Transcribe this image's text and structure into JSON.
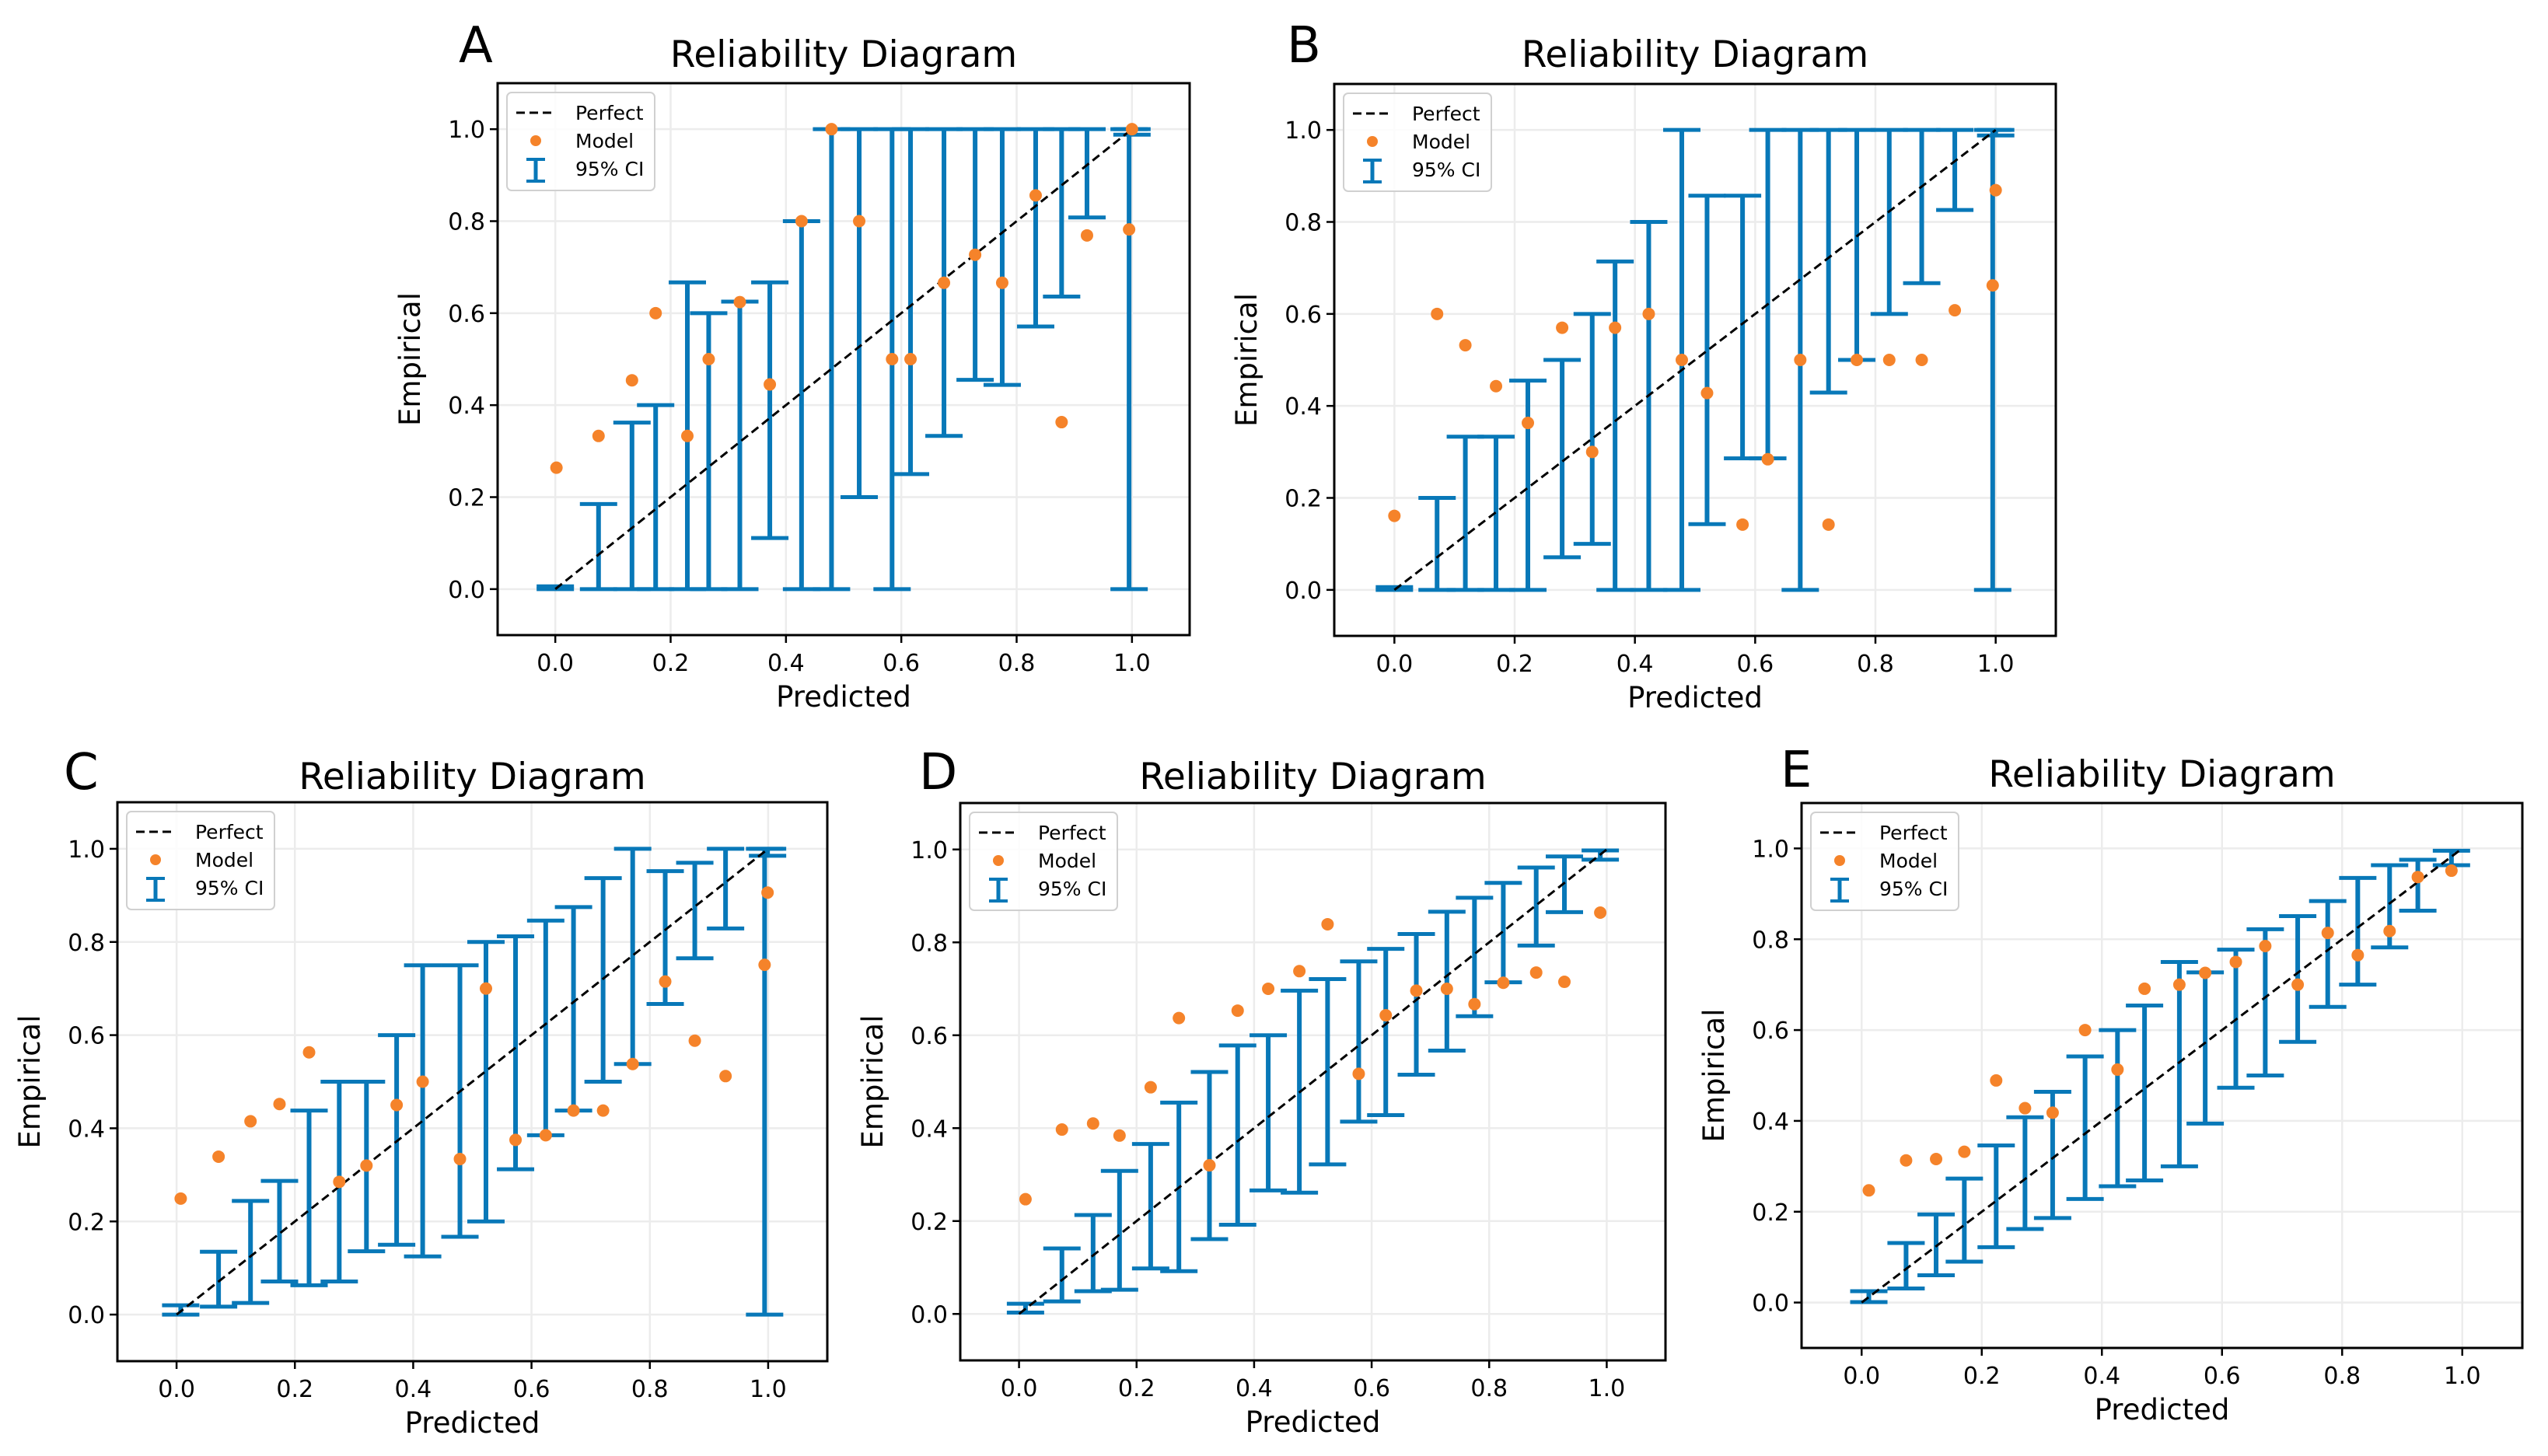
{
  "figure": {
    "panel_letters": [
      "A",
      "B",
      "C",
      "D",
      "E"
    ]
  },
  "colors": {
    "model": "#f5832a",
    "ci": "#0878b8",
    "perfect": "#000000",
    "grid": "#ececec",
    "legend_border": "#d0d0d0"
  },
  "legend": {
    "perfect_label": "Perfect",
    "model_label": "Model",
    "ci_label": "95% CI",
    "placement": "top-left"
  },
  "chart_data": [
    {
      "panel": "A",
      "type": "scatter",
      "title": "Reliability Diagram",
      "xlabel": "Predicted",
      "ylabel": "Empirical",
      "xlim": [
        -0.1,
        1.1
      ],
      "ylim": [
        -0.1,
        1.1
      ],
      "xticks": [
        "0.0",
        "0.2",
        "0.4",
        "0.6",
        "0.8",
        "1.0"
      ],
      "yticks": [
        "0.0",
        "0.2",
        "0.4",
        "0.6",
        "0.8",
        "1.0"
      ],
      "grid": true,
      "show_ylabel": true,
      "perfect_line": [
        [
          0,
          0
        ],
        [
          1,
          1
        ]
      ],
      "model": {
        "x": [
          0.002,
          0.075,
          0.133,
          0.174,
          0.229,
          0.266,
          0.32,
          0.372,
          0.427,
          0.479,
          0.527,
          0.584,
          0.616,
          0.674,
          0.728,
          0.775,
          0.833,
          0.878,
          0.922,
          0.995,
          1.0
        ],
        "y": [
          0.264,
          0.333,
          0.454,
          0.6,
          0.333,
          0.5,
          0.624,
          0.445,
          0.8,
          1.0,
          0.8,
          0.5,
          0.5,
          0.666,
          0.727,
          0.666,
          0.856,
          0.363,
          0.769,
          0.782,
          1.0
        ]
      },
      "ci": {
        "x": [
          0.0,
          0.075,
          0.133,
          0.174,
          0.229,
          0.266,
          0.32,
          0.372,
          0.427,
          0.479,
          0.527,
          0.584,
          0.616,
          0.674,
          0.728,
          0.775,
          0.833,
          0.878,
          0.922,
          0.995,
          1.0
        ],
        "low": [
          0.0,
          0.0,
          0.0,
          0.0,
          0.0,
          0.0,
          0.0,
          0.111,
          0.0,
          0.0,
          0.2,
          0.0,
          0.25,
          0.333,
          0.455,
          0.444,
          0.571,
          0.636,
          0.808,
          0.0,
          0.988
        ],
        "high": [
          0.006,
          0.185,
          0.362,
          0.4,
          0.667,
          0.6,
          0.625,
          0.667,
          0.8,
          1.0,
          1.0,
          1.0,
          1.0,
          1.0,
          1.0,
          1.0,
          1.0,
          1.0,
          1.0,
          1.0,
          1.0
        ]
      }
    },
    {
      "panel": "B",
      "type": "scatter",
      "title": "Reliability Diagram",
      "xlabel": "Predicted",
      "ylabel": "Empirical",
      "xlim": [
        -0.1,
        1.1
      ],
      "ylim": [
        -0.1,
        1.1
      ],
      "xticks": [
        "0.0",
        "0.2",
        "0.4",
        "0.6",
        "0.8",
        "1.0"
      ],
      "yticks": [
        "0.0",
        "0.2",
        "0.4",
        "0.6",
        "0.8",
        "1.0"
      ],
      "grid": true,
      "show_ylabel": true,
      "perfect_line": [
        [
          0,
          0
        ],
        [
          1,
          1
        ]
      ],
      "model": {
        "x": [
          0.0,
          0.071,
          0.118,
          0.169,
          0.222,
          0.279,
          0.329,
          0.367,
          0.423,
          0.478,
          0.52,
          0.579,
          0.621,
          0.675,
          0.722,
          0.769,
          0.823,
          0.877,
          0.932,
          0.995,
          1.0
        ],
        "y": [
          0.161,
          0.6,
          0.532,
          0.443,
          0.363,
          0.57,
          0.3,
          0.57,
          0.6,
          0.5,
          0.428,
          0.142,
          0.284,
          0.5,
          0.142,
          0.5,
          0.5,
          0.5,
          0.608,
          0.662,
          0.869
        ]
      },
      "ci": {
        "x": [
          0.0,
          0.071,
          0.118,
          0.169,
          0.222,
          0.279,
          0.329,
          0.367,
          0.423,
          0.478,
          0.52,
          0.579,
          0.621,
          0.675,
          0.722,
          0.769,
          0.823,
          0.877,
          0.932,
          0.995,
          1.0
        ],
        "low": [
          0.0,
          0.0,
          0.0,
          0.0,
          0.0,
          0.071,
          0.1,
          0.0,
          0.0,
          0.0,
          0.143,
          0.286,
          0.286,
          0.0,
          0.429,
          0.5,
          0.6,
          0.667,
          0.826,
          0.0,
          0.988
        ],
        "high": [
          0.006,
          0.2,
          0.333,
          0.333,
          0.455,
          0.5,
          0.6,
          0.714,
          0.8,
          1.0,
          0.857,
          0.857,
          1.0,
          1.0,
          1.0,
          1.0,
          1.0,
          1.0,
          1.0,
          1.0,
          1.0
        ]
      }
    },
    {
      "panel": "C",
      "type": "scatter",
      "title": "Reliability Diagram",
      "xlabel": "Predicted",
      "ylabel": "Empirical",
      "xlim": [
        -0.1,
        1.1
      ],
      "ylim": [
        -0.1,
        1.1
      ],
      "xticks": [
        "0.0",
        "0.2",
        "0.4",
        "0.6",
        "0.8",
        "1.0"
      ],
      "yticks": [
        "0.0",
        "0.2",
        "0.4",
        "0.6",
        "0.8",
        "1.0"
      ],
      "grid": true,
      "show_ylabel": true,
      "perfect_line": [
        [
          0,
          0
        ],
        [
          1,
          1
        ]
      ],
      "model": {
        "x": [
          0.007,
          0.071,
          0.125,
          0.174,
          0.224,
          0.275,
          0.321,
          0.372,
          0.416,
          0.479,
          0.523,
          0.573,
          0.624,
          0.671,
          0.721,
          0.771,
          0.826,
          0.876,
          0.928,
          0.994,
          0.999
        ],
        "y": [
          0.249,
          0.339,
          0.415,
          0.452,
          0.563,
          0.285,
          0.32,
          0.45,
          0.5,
          0.334,
          0.7,
          0.375,
          0.385,
          0.438,
          0.438,
          0.538,
          0.715,
          0.588,
          0.512,
          0.751,
          0.906
        ]
      },
      "ci": {
        "x": [
          0.007,
          0.071,
          0.125,
          0.174,
          0.224,
          0.275,
          0.321,
          0.372,
          0.416,
          0.479,
          0.523,
          0.573,
          0.624,
          0.671,
          0.721,
          0.771,
          0.826,
          0.876,
          0.928,
          0.994,
          0.999
        ],
        "low": [
          0.0,
          0.017,
          0.025,
          0.071,
          0.063,
          0.071,
          0.136,
          0.15,
          0.125,
          0.167,
          0.2,
          0.312,
          0.385,
          0.438,
          0.5,
          0.538,
          0.667,
          0.765,
          0.829,
          0.0,
          0.985
        ],
        "high": [
          0.02,
          0.135,
          0.244,
          0.287,
          0.438,
          0.5,
          0.5,
          0.6,
          0.75,
          0.75,
          0.8,
          0.812,
          0.846,
          0.875,
          0.937,
          1.0,
          0.952,
          0.97,
          1.0,
          1.0,
          1.0
        ]
      }
    },
    {
      "panel": "D",
      "type": "scatter",
      "title": "Reliability Diagram",
      "xlabel": "Predicted",
      "ylabel": "Empirical",
      "xlim": [
        -0.1,
        1.1
      ],
      "ylim": [
        -0.1,
        1.1
      ],
      "xticks": [
        "0.0",
        "0.2",
        "0.4",
        "0.6",
        "0.8",
        "1.0"
      ],
      "yticks": [
        "0.0",
        "0.2",
        "0.4",
        "0.6",
        "0.8",
        "1.0"
      ],
      "grid": true,
      "show_ylabel": true,
      "perfect_line": [
        [
          0,
          0
        ],
        [
          1,
          1
        ]
      ],
      "model": {
        "x": [
          0.011,
          0.073,
          0.126,
          0.171,
          0.224,
          0.272,
          0.324,
          0.372,
          0.424,
          0.477,
          0.525,
          0.578,
          0.624,
          0.676,
          0.728,
          0.775,
          0.824,
          0.88,
          0.928,
          0.989
        ],
        "y": [
          0.247,
          0.397,
          0.41,
          0.384,
          0.488,
          0.637,
          0.32,
          0.653,
          0.7,
          0.738,
          0.839,
          0.517,
          0.643,
          0.696,
          0.7,
          0.667,
          0.713,
          0.735,
          0.715,
          0.864
        ]
      },
      "ci": {
        "x": [
          0.011,
          0.073,
          0.126,
          0.171,
          0.224,
          0.272,
          0.324,
          0.372,
          0.424,
          0.477,
          0.525,
          0.578,
          0.624,
          0.676,
          0.728,
          0.775,
          0.824,
          0.88,
          0.928,
          0.989
        ],
        "low": [
          0.003,
          0.027,
          0.049,
          0.052,
          0.098,
          0.092,
          0.161,
          0.192,
          0.266,
          0.261,
          0.322,
          0.414,
          0.428,
          0.515,
          0.567,
          0.641,
          0.714,
          0.793,
          0.865,
          0.978
        ],
        "high": [
          0.022,
          0.141,
          0.213,
          0.308,
          0.366,
          0.455,
          0.521,
          0.578,
          0.6,
          0.696,
          0.721,
          0.759,
          0.786,
          0.818,
          0.866,
          0.896,
          0.928,
          0.961,
          0.985,
          0.998
        ]
      }
    },
    {
      "panel": "E",
      "type": "scatter",
      "title": "Reliability Diagram",
      "xlabel": "Predicted",
      "ylabel": "Empirical",
      "xlim": [
        -0.1,
        1.1
      ],
      "ylim": [
        -0.1,
        1.1
      ],
      "xticks": [
        "0.0",
        "0.2",
        "0.4",
        "0.6",
        "0.8",
        "1.0"
      ],
      "yticks": [
        "0.0",
        "0.2",
        "0.4",
        "0.6",
        "0.8",
        "1.0"
      ],
      "grid": true,
      "show_ylabel": true,
      "perfect_line": [
        [
          0,
          0
        ],
        [
          1,
          1
        ]
      ],
      "model": {
        "x": [
          0.012,
          0.074,
          0.124,
          0.171,
          0.224,
          0.272,
          0.318,
          0.372,
          0.426,
          0.471,
          0.529,
          0.572,
          0.623,
          0.672,
          0.726,
          0.776,
          0.826,
          0.879,
          0.926,
          0.982
        ],
        "y": [
          0.247,
          0.313,
          0.316,
          0.332,
          0.489,
          0.428,
          0.418,
          0.6,
          0.513,
          0.691,
          0.7,
          0.726,
          0.75,
          0.785,
          0.7,
          0.814,
          0.765,
          0.818,
          0.937,
          0.951
        ]
      },
      "ci": {
        "x": [
          0.012,
          0.074,
          0.124,
          0.171,
          0.224,
          0.272,
          0.318,
          0.372,
          0.426,
          0.471,
          0.529,
          0.572,
          0.623,
          0.672,
          0.726,
          0.776,
          0.826,
          0.879,
          0.926,
          0.982
        ],
        "low": [
          0.001,
          0.031,
          0.06,
          0.09,
          0.122,
          0.162,
          0.186,
          0.228,
          0.256,
          0.269,
          0.3,
          0.394,
          0.473,
          0.5,
          0.574,
          0.651,
          0.7,
          0.782,
          0.863,
          0.963
        ],
        "high": [
          0.025,
          0.131,
          0.194,
          0.273,
          0.346,
          0.408,
          0.464,
          0.542,
          0.6,
          0.654,
          0.75,
          0.727,
          0.777,
          0.822,
          0.851,
          0.884,
          0.935,
          0.963,
          0.975,
          0.995
        ]
      }
    }
  ]
}
